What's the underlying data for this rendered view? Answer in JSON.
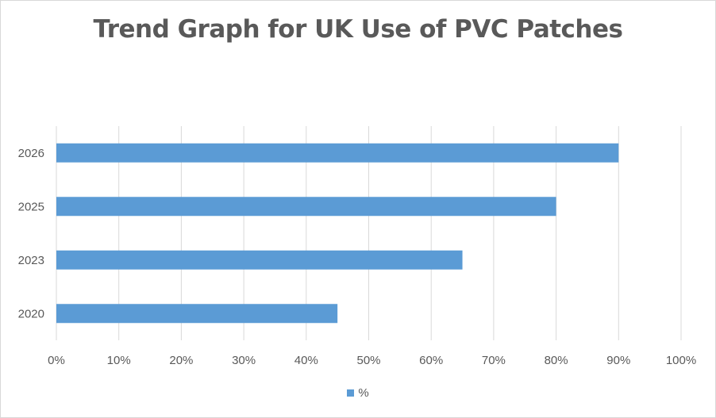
{
  "chart_data": {
    "type": "bar",
    "orientation": "horizontal",
    "title": "Trend Graph for UK Use of PVC Patches",
    "categories": [
      "2020",
      "2023",
      "2025",
      "2026"
    ],
    "series": [
      {
        "name": "%",
        "values": [
          0.45,
          0.65,
          0.8,
          0.9
        ]
      }
    ],
    "xlim": [
      0,
      1
    ],
    "x_ticks": [
      "0%",
      "10%",
      "20%",
      "30%",
      "40%",
      "50%",
      "60%",
      "70%",
      "80%",
      "90%",
      "100%"
    ],
    "grid": "vertical",
    "legend": "bottom",
    "bar_color": "#5b9bd5"
  }
}
